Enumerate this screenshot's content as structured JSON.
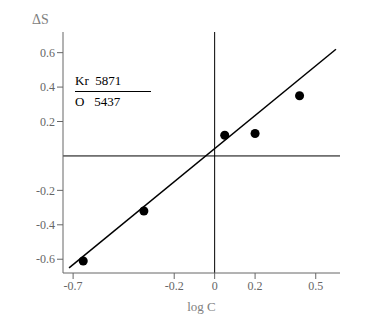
{
  "chart_data": {
    "type": "scatter",
    "xlabel": "log C",
    "ylabel": "ΔS",
    "annotations": [
      "Kr  5871",
      "O   5437"
    ],
    "series": [
      {
        "type": "line",
        "x": [
          -0.72,
          0.6
        ],
        "values": [
          -0.65,
          0.62
        ],
        "color": "#000000"
      },
      {
        "type": "scatter",
        "x": [
          -0.65,
          -0.35,
          0.05,
          0.2,
          0.42
        ],
        "values": [
          -0.61,
          -0.32,
          0.12,
          0.13,
          0.35
        ],
        "color": "#000000"
      }
    ],
    "xlim": [
      -0.75,
      0.62
    ],
    "ylim": [
      -0.68,
      0.72
    ],
    "xticks": [
      -0.7,
      -0.2,
      0,
      0.2,
      0.5
    ],
    "yticks": [
      -0.6,
      -0.4,
      -0.2,
      0.2,
      0.4,
      0.6
    ],
    "grid": false
  }
}
